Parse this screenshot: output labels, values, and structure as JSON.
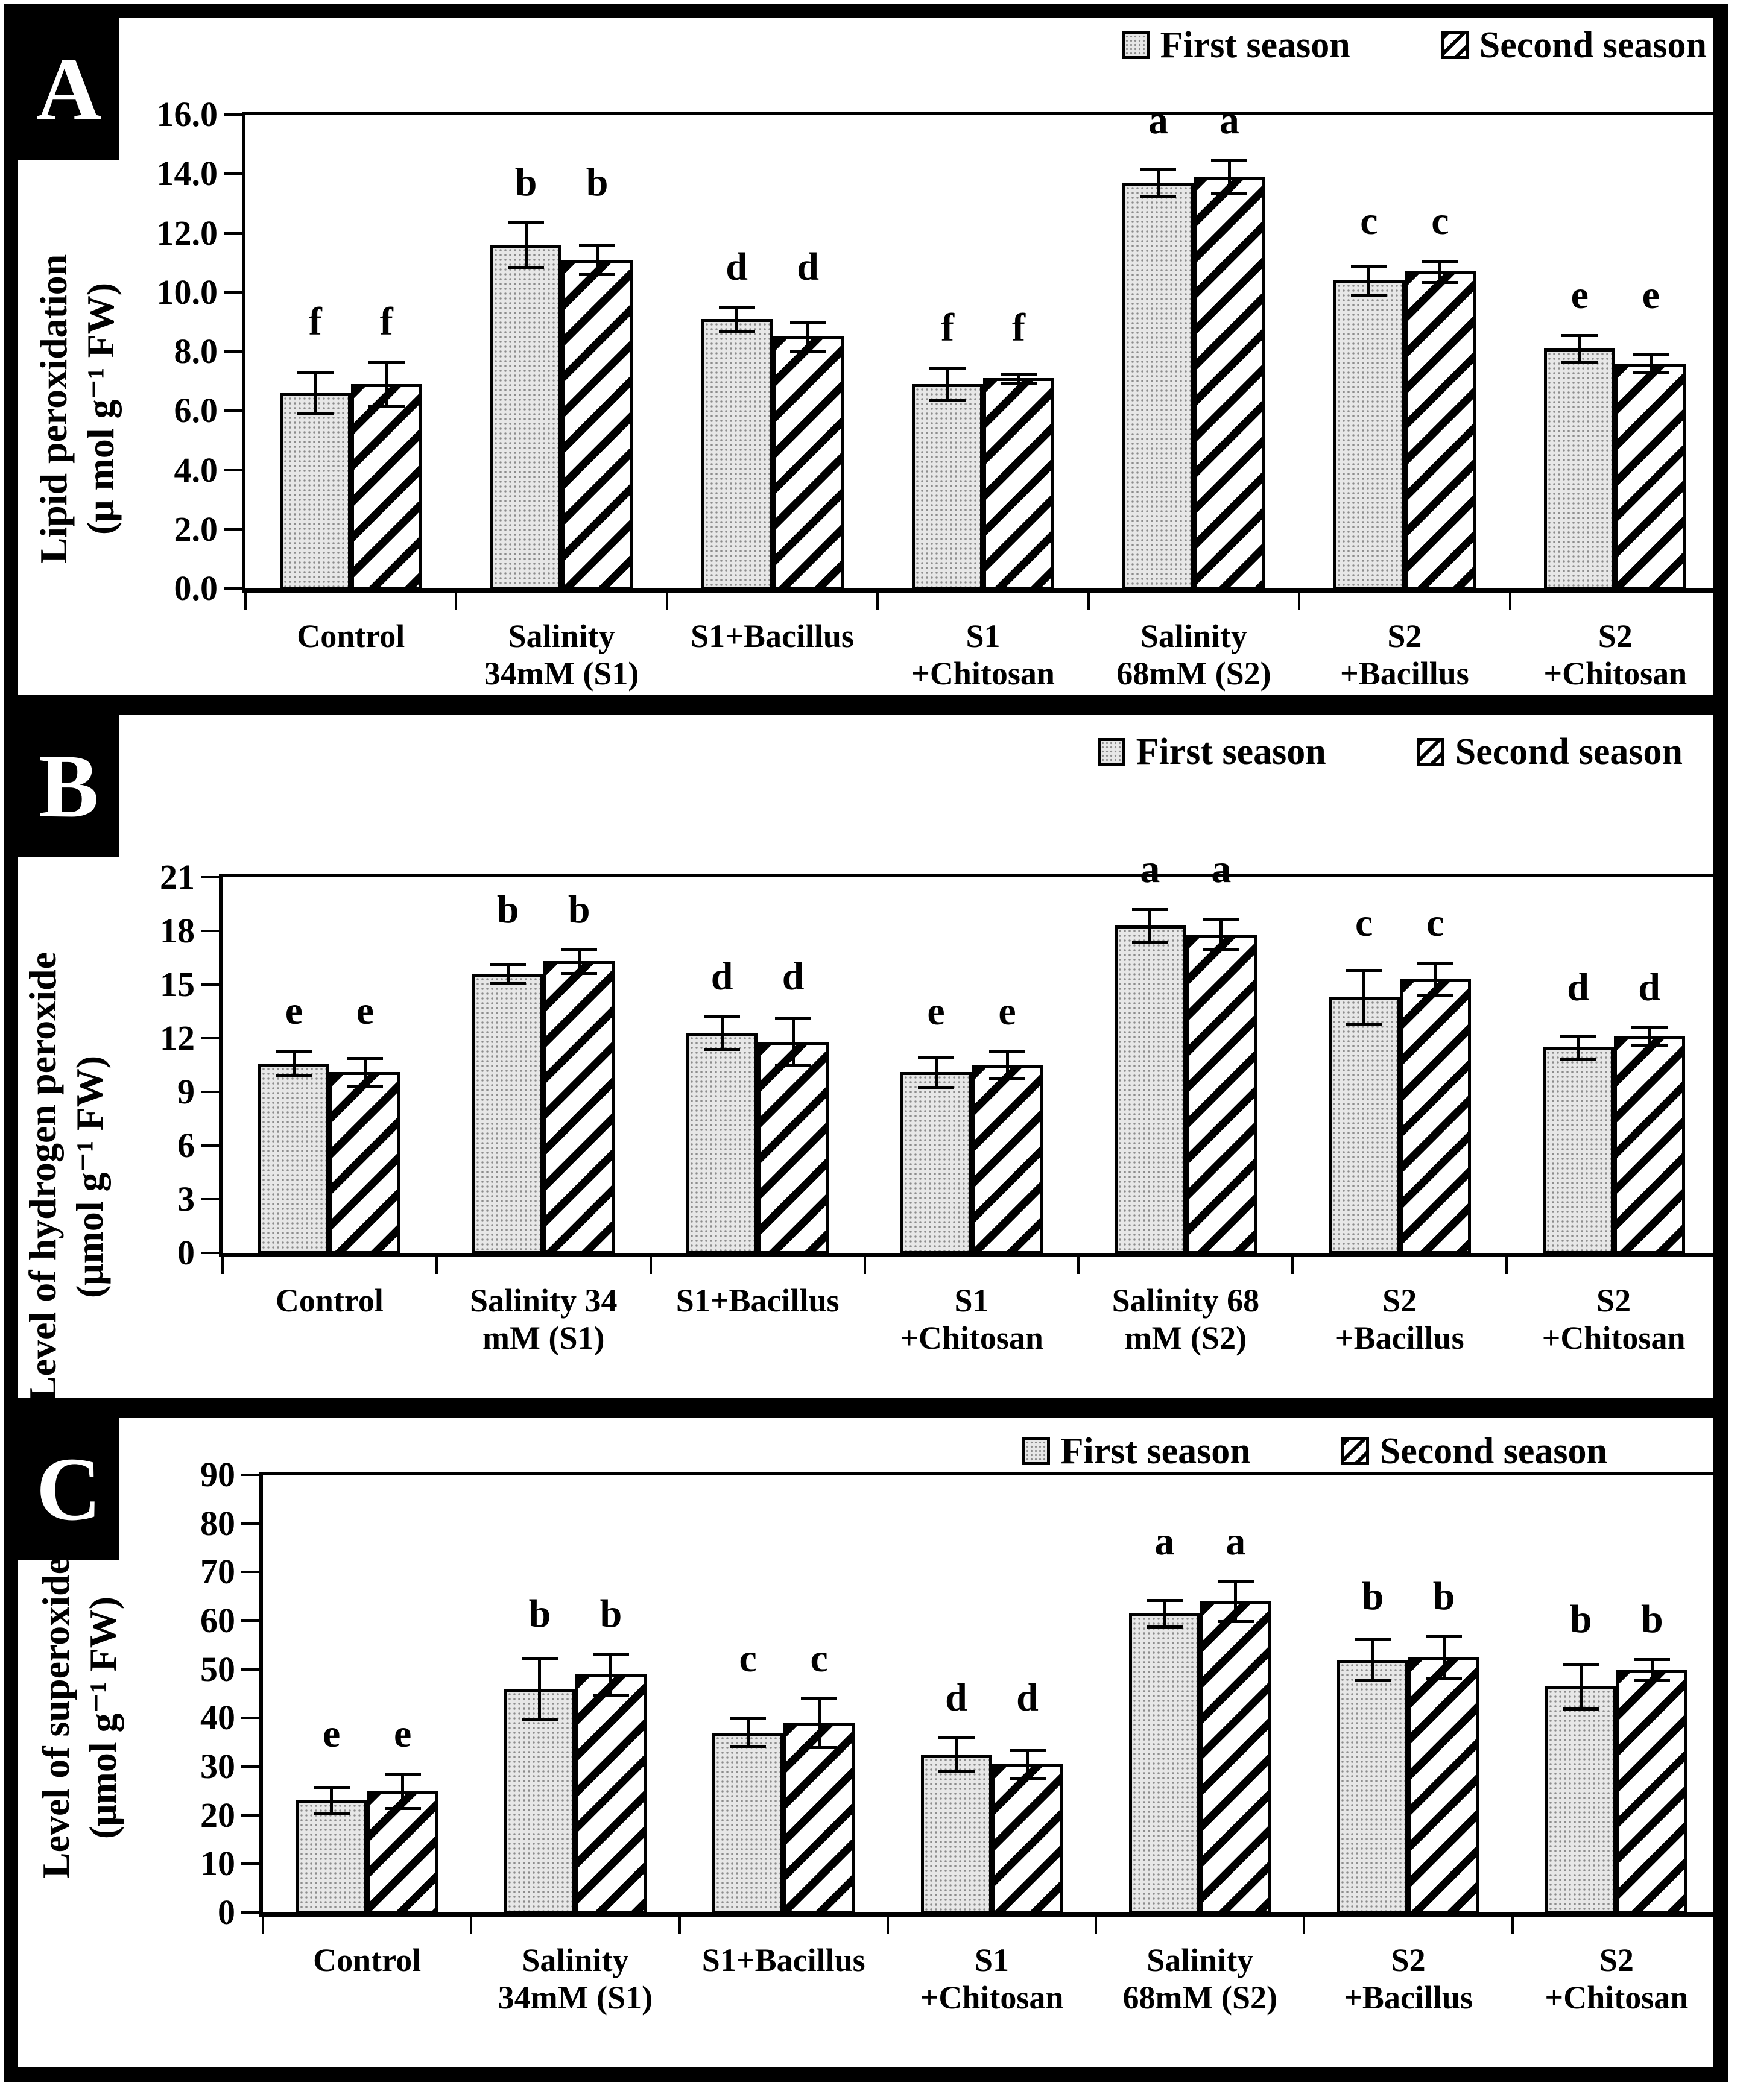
{
  "figure_legend": {
    "first_label": "First season",
    "second_label": "Second season"
  },
  "chart_data": [
    {
      "type": "bar",
      "panel": "A",
      "title": "",
      "xlabel": "",
      "ylabel": "Lipid peroxidation (μ mol g⁻¹ FW)",
      "ylabel_lines": [
        "Lipid peroxidation",
        "(μ mol g⁻¹ FW)"
      ],
      "ylim": [
        0,
        16
      ],
      "ytick_labels": [
        "0.0",
        "2.0",
        "4.0",
        "6.0",
        "8.0",
        "10.0",
        "12.0",
        "14.0",
        "16.0"
      ],
      "grid": false,
      "legend_position": "top-right",
      "categories": [
        "Control",
        "Salinity 34mM (S1)",
        "S1+Bacillus",
        "S1+Chitosan",
        "Salinity 68mM (S2)",
        "S2+Bacillus",
        "S2+Chitosan"
      ],
      "categories_lines": [
        [
          "Control"
        ],
        [
          "Salinity",
          "34mM (S1)"
        ],
        [
          "S1+Bacillus"
        ],
        [
          "S1",
          "+Chitosan"
        ],
        [
          "Salinity",
          "68mM (S2)"
        ],
        [
          "S2",
          "+Bacillus"
        ],
        [
          "S2",
          "+Chitosan"
        ]
      ],
      "sig_letters": [
        "f",
        "b",
        "d",
        "f",
        "a",
        "c",
        "e"
      ],
      "series": [
        {
          "name": "First season",
          "pattern": "dots",
          "values": [
            6.6,
            11.6,
            9.1,
            6.9,
            13.7,
            10.4,
            8.1
          ],
          "errors": [
            0.7,
            0.75,
            0.4,
            0.55,
            0.45,
            0.5,
            0.45
          ]
        },
        {
          "name": "Second season",
          "pattern": "hatch",
          "values": [
            6.9,
            11.1,
            8.5,
            7.1,
            13.9,
            10.7,
            7.6
          ],
          "errors": [
            0.75,
            0.5,
            0.5,
            0.15,
            0.55,
            0.35,
            0.3
          ]
        }
      ]
    },
    {
      "type": "bar",
      "panel": "B",
      "title": "",
      "xlabel": "",
      "ylabel": "Level of hydrogen peroxide (μmol g⁻¹ FW)",
      "ylabel_lines": [
        "Level of hydrogen peroxide",
        "(μmol g⁻¹ FW)"
      ],
      "ylim": [
        0,
        21
      ],
      "ytick_labels": [
        "0",
        "3",
        "6",
        "9",
        "12",
        "15",
        "18",
        "21"
      ],
      "grid": false,
      "legend_position": "top-right",
      "categories": [
        "Control",
        "Salinity 34 mM (S1)",
        "S1+Bacillus",
        "S1+Chitosan",
        "Salinity 68 mM (S2)",
        "S2+Bacillus",
        "S2+Chitosan"
      ],
      "categories_lines": [
        [
          "Control"
        ],
        [
          "Salinity 34",
          "mM (S1)"
        ],
        [
          "S1+Bacillus"
        ],
        [
          "S1",
          "+Chitosan"
        ],
        [
          "Salinity 68",
          "mM (S2)"
        ],
        [
          "S2",
          "+Bacillus"
        ],
        [
          "S2",
          "+Chitosan"
        ]
      ],
      "sig_letters": [
        "e",
        "b",
        "d",
        "e",
        "a",
        "c",
        "d"
      ],
      "series": [
        {
          "name": "First season",
          "pattern": "dots",
          "values": [
            10.6,
            15.6,
            12.3,
            10.1,
            18.3,
            14.3,
            11.5
          ],
          "errors": [
            0.7,
            0.5,
            0.9,
            0.85,
            0.9,
            1.5,
            0.65
          ]
        },
        {
          "name": "Second season",
          "pattern": "hatch",
          "values": [
            10.1,
            16.3,
            11.8,
            10.5,
            17.8,
            15.3,
            12.1
          ],
          "errors": [
            0.8,
            0.65,
            1.3,
            0.75,
            0.85,
            0.9,
            0.5
          ]
        }
      ]
    },
    {
      "type": "bar",
      "panel": "C",
      "title": "",
      "xlabel": "",
      "ylabel": "Level of superoxide (μmol g⁻¹ FW)",
      "ylabel_lines": [
        "Level of superoxide",
        "(μmol g⁻¹ FW)"
      ],
      "ylim": [
        0,
        90
      ],
      "ytick_labels": [
        "0",
        "10",
        "20",
        "30",
        "40",
        "50",
        "60",
        "70",
        "80",
        "90"
      ],
      "grid": false,
      "legend_position": "top-right",
      "categories": [
        "Control",
        "Salinity 34mM (S1)",
        "S1+Bacillus",
        "S1+Chitosan",
        "Salinity 68mM (S2)",
        "S2+Bacillus",
        "S2+Chitosan"
      ],
      "categories_lines": [
        [
          "Control"
        ],
        [
          "Salinity",
          "34mM (S1)"
        ],
        [
          "S1+Bacillus"
        ],
        [
          "S1",
          "+Chitosan"
        ],
        [
          "Salinity",
          "68mM (S2)"
        ],
        [
          "S2",
          "+Bacillus"
        ],
        [
          "S2",
          "+Chitosan"
        ]
      ],
      "sig_letters": [
        "e",
        "b",
        "c",
        "d",
        "a",
        "b",
        "b"
      ],
      "series": [
        {
          "name": "First season",
          "pattern": "dots",
          "values": [
            23,
            46,
            37,
            32.5,
            61.5,
            52,
            46.5
          ],
          "errors": [
            2.6,
            6.2,
            2.9,
            3.4,
            2.7,
            4.2,
            4.6
          ]
        },
        {
          "name": "Second season",
          "pattern": "hatch",
          "values": [
            25,
            49,
            39,
            30.5,
            64,
            52.5,
            50
          ],
          "errors": [
            3.5,
            4.2,
            5.0,
            2.9,
            4.1,
            4.3,
            2.1
          ]
        }
      ]
    }
  ]
}
